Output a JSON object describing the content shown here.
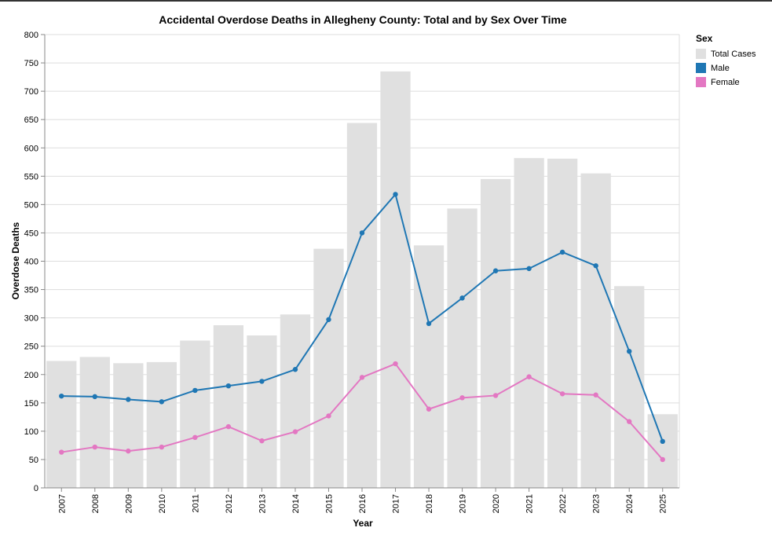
{
  "chart_data": {
    "type": "bar",
    "title": "Accidental Overdose Deaths in Allegheny County: Total and by Sex Over Time",
    "xlabel": "Year",
    "ylabel": "Overdose Deaths",
    "ylim": [
      0,
      800
    ],
    "yticks": [
      0,
      50,
      100,
      150,
      200,
      250,
      300,
      350,
      400,
      450,
      500,
      550,
      600,
      650,
      700,
      750,
      800
    ],
    "grid": true,
    "legend_position": "right",
    "categories": [
      "2007",
      "2008",
      "2009",
      "2010",
      "2011",
      "2012",
      "2013",
      "2014",
      "2015",
      "2016",
      "2017",
      "2018",
      "2019",
      "2020",
      "2021",
      "2022",
      "2023",
      "2024",
      "2025"
    ],
    "legend": {
      "title": "Sex",
      "entries": [
        "Total Cases",
        "Male",
        "Female"
      ]
    },
    "series": [
      {
        "name": "Total Cases",
        "mark": "bar",
        "color": "#e0e0e0",
        "values": [
          224,
          231,
          220,
          222,
          260,
          287,
          269,
          306,
          422,
          644,
          735,
          428,
          493,
          545,
          582,
          581,
          555,
          356,
          130
        ]
      },
      {
        "name": "Male",
        "mark": "line",
        "color": "#1f77b4",
        "values": [
          162,
          161,
          156,
          152,
          172,
          180,
          188,
          209,
          297,
          450,
          518,
          290,
          335,
          383,
          387,
          416,
          392,
          241,
          82
        ]
      },
      {
        "name": "Female",
        "mark": "line",
        "color": "#e377c2",
        "values": [
          63,
          72,
          65,
          72,
          89,
          108,
          83,
          99,
          127,
          195,
          219,
          139,
          159,
          163,
          196,
          166,
          164,
          117,
          50
        ]
      }
    ]
  }
}
